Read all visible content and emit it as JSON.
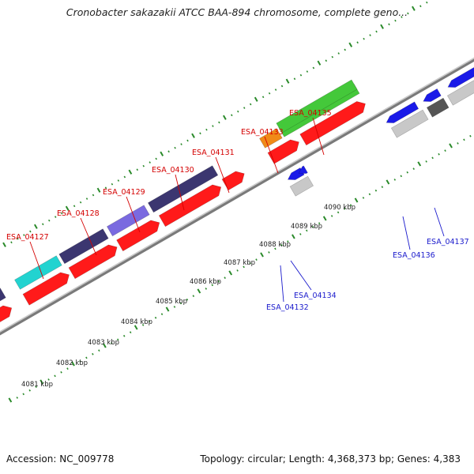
{
  "title": "Cronobacter sakazakii ATCC BAA-894 chromosome, complete geno...",
  "footer": {
    "accession": "Accession: NC_009778",
    "summary": "Topology: circular; Length: 4,368,373 bp; Genes: 4,383"
  },
  "colors": {
    "forward_label": "#d40000",
    "reverse_label": "#1a1acc",
    "backbone": "#888888",
    "tick": "#2a8a2a"
  },
  "ticks": [
    {
      "kbp": 4081,
      "label": "4081 kbp"
    },
    {
      "kbp": 4082,
      "label": "4082 kbp"
    },
    {
      "kbp": 4083,
      "label": "4083 kbp"
    },
    {
      "kbp": 4084,
      "label": "4084 kbp"
    },
    {
      "kbp": 4085,
      "label": "4085 kbp"
    },
    {
      "kbp": 4086,
      "label": "4086 kbp"
    },
    {
      "kbp": 4087,
      "label": "4087 kbp"
    },
    {
      "kbp": 4088,
      "label": "4088 kbp"
    },
    {
      "kbp": 4089,
      "label": "4089 kbp"
    },
    {
      "kbp": 4090,
      "label": "4090 kbp"
    }
  ],
  "forward_genes": [
    {
      "label": "ESA_04127"
    },
    {
      "label": "ESA_04128"
    },
    {
      "label": "ESA_04129"
    },
    {
      "label": "ESA_04130"
    },
    {
      "label": "ESA_04131"
    },
    {
      "label": "ESA_04133"
    },
    {
      "label": "ESA_04135"
    }
  ],
  "reverse_genes": [
    {
      "label": "ESA_04132"
    },
    {
      "label": "ESA_04134"
    },
    {
      "label": "ESA_04136"
    },
    {
      "label": "ESA_04137"
    }
  ]
}
